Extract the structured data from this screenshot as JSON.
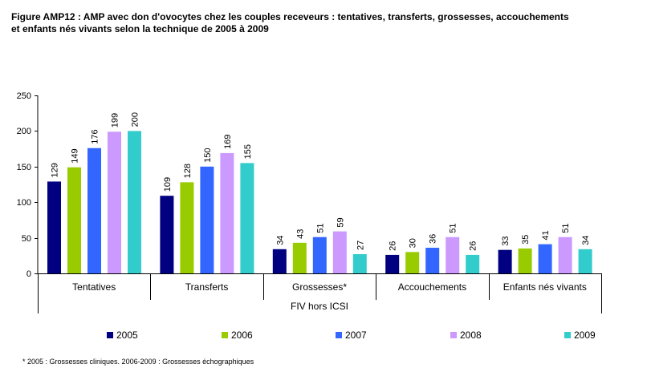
{
  "title_line1": "Figure AMP12 : AMP avec don d'ovocytes chez les couples receveurs : tentatives, transferts, grossesses, accouchements",
  "title_line2": "et enfants nés vivants selon la technique de 2005 à 2009",
  "footnote": "* 2005 : Grossesses cliniques. 2006-2009 : Grossesses échographiques",
  "colors": {
    "2005": "#000080",
    "2006": "#99cc00",
    "2007": "#3366ff",
    "2008": "#cc99ff",
    "2009": "#33cccc"
  },
  "chart_data": {
    "type": "bar",
    "title": "Figure AMP12 : AMP avec don d'ovocytes chez les couples receveurs : tentatives, transferts, grossesses, accouchements et enfants nés vivants selon la technique de 2005 à 2009",
    "categories": [
      "Tentatives",
      "Transferts",
      "Grossesses*",
      "Accouchements",
      "Enfants nés vivants"
    ],
    "group_label": "FIV hors ICSI",
    "series": [
      {
        "name": "2005",
        "values": [
          129,
          109,
          34,
          26,
          33
        ]
      },
      {
        "name": "2006",
        "values": [
          149,
          128,
          43,
          30,
          35
        ]
      },
      {
        "name": "2007",
        "values": [
          176,
          150,
          51,
          36,
          41
        ]
      },
      {
        "name": "2008",
        "values": [
          199,
          169,
          59,
          51,
          51
        ]
      },
      {
        "name": "2009",
        "values": [
          200,
          155,
          27,
          26,
          34
        ]
      }
    ],
    "ylim": [
      0,
      250
    ],
    "yticks": [
      0,
      50,
      100,
      150,
      200,
      250
    ],
    "xlabel": "",
    "ylabel": "",
    "grid": false,
    "legend_position": "bottom",
    "data_labels": true
  }
}
